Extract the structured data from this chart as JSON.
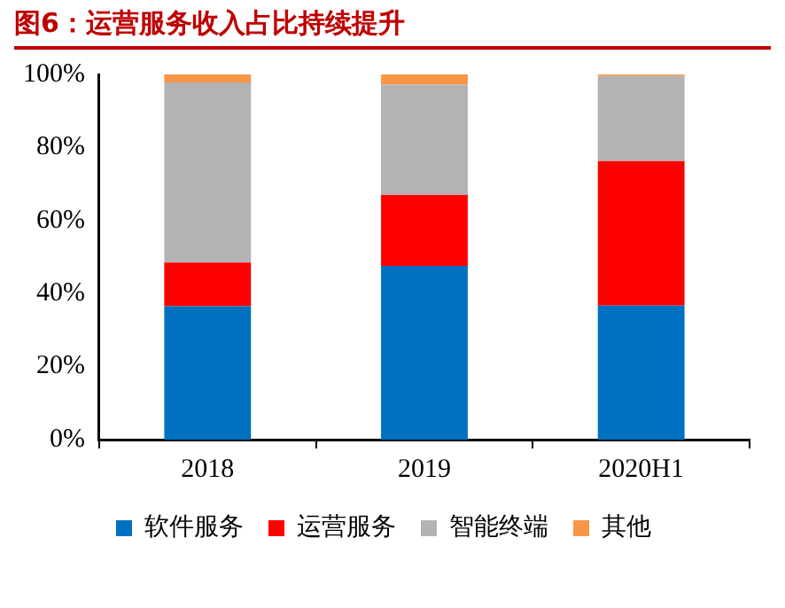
{
  "chart_data": {
    "type": "bar",
    "title": "图6：运营服务收入占比持续提升",
    "categories": [
      "2018",
      "2019",
      "2020H1"
    ],
    "stacked": true,
    "series": [
      {
        "name": "软件服务",
        "color": "#0070c0",
        "values": [
          36.5,
          47.6,
          36.7
        ]
      },
      {
        "name": "运营服务",
        "color": "#ff0000",
        "values": [
          12,
          19.4,
          39.6
        ]
      },
      {
        "name": "智能终端",
        "color": "#b3b3b3",
        "values": [
          49.3,
          30.2,
          23.3
        ]
      },
      {
        "name": "其他",
        "color": "#f79646",
        "values": [
          2.2,
          2.8,
          0.4
        ]
      }
    ],
    "ylim": [
      0,
      100
    ],
    "yticks": [
      {
        "value": 0,
        "label": "0%"
      },
      {
        "value": 20,
        "label": "20%"
      },
      {
        "value": 40,
        "label": "40%"
      },
      {
        "value": 60,
        "label": "60%"
      },
      {
        "value": 80,
        "label": "80%"
      },
      {
        "value": 100,
        "label": "100%"
      }
    ],
    "grid": false,
    "legend": "bottom"
  }
}
